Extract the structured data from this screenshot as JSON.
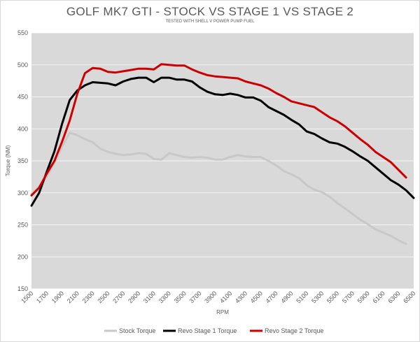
{
  "chart_data": {
    "type": "line",
    "title": "GOLF MK7 GTI - STOCK VS STAGE 1 VS STAGE 2",
    "subtitle": "TESTED WITH SHELL V POWER PUMP FUEL",
    "xlabel": "RPM",
    "ylabel": "Torque (NM)",
    "ylim": [
      150,
      550
    ],
    "yticks": [
      150,
      200,
      250,
      300,
      350,
      400,
      450,
      500,
      550
    ],
    "xlim": [
      1500,
      6500
    ],
    "xticks": [
      1500,
      1700,
      1900,
      2100,
      2300,
      2500,
      2700,
      2900,
      3100,
      3300,
      3500,
      3700,
      3900,
      4100,
      4300,
      4500,
      4700,
      4900,
      5100,
      5300,
      5500,
      5700,
      5900,
      6100,
      6300,
      6500
    ],
    "grid": "horizontal",
    "legend_position": "bottom",
    "series": [
      {
        "name": "Stock Torque",
        "color": "#c8c8c8",
        "points": [
          [
            1500,
            298
          ],
          [
            1600,
            310
          ],
          [
            1700,
            325
          ],
          [
            1800,
            347
          ],
          [
            1900,
            372
          ],
          [
            2000,
            394
          ],
          [
            2100,
            390
          ],
          [
            2200,
            384
          ],
          [
            2300,
            379
          ],
          [
            2400,
            369
          ],
          [
            2500,
            364
          ],
          [
            2600,
            361
          ],
          [
            2700,
            359
          ],
          [
            2800,
            360
          ],
          [
            2900,
            362
          ],
          [
            3000,
            361
          ],
          [
            3100,
            353
          ],
          [
            3200,
            352
          ],
          [
            3300,
            362
          ],
          [
            3400,
            359
          ],
          [
            3500,
            356
          ],
          [
            3600,
            355
          ],
          [
            3700,
            356
          ],
          [
            3800,
            355
          ],
          [
            3900,
            352
          ],
          [
            4000,
            352
          ],
          [
            4100,
            356
          ],
          [
            4200,
            359
          ],
          [
            4300,
            357
          ],
          [
            4400,
            356
          ],
          [
            4500,
            356
          ],
          [
            4600,
            350
          ],
          [
            4700,
            343
          ],
          [
            4800,
            334
          ],
          [
            4900,
            329
          ],
          [
            5000,
            323
          ],
          [
            5100,
            312
          ],
          [
            5200,
            305
          ],
          [
            5300,
            301
          ],
          [
            5400,
            294
          ],
          [
            5500,
            284
          ],
          [
            5600,
            276
          ],
          [
            5700,
            267
          ],
          [
            5800,
            258
          ],
          [
            5900,
            251
          ],
          [
            6000,
            243
          ],
          [
            6100,
            238
          ],
          [
            6200,
            233
          ],
          [
            6300,
            226
          ],
          [
            6400,
            220
          ]
        ]
      },
      {
        "name": "Revo Stage 1 Torque",
        "color": "#000000",
        "points": [
          [
            1500,
            280
          ],
          [
            1600,
            300
          ],
          [
            1700,
            333
          ],
          [
            1800,
            365
          ],
          [
            1900,
            408
          ],
          [
            2000,
            445
          ],
          [
            2100,
            460
          ],
          [
            2200,
            468
          ],
          [
            2300,
            473
          ],
          [
            2400,
            472
          ],
          [
            2500,
            471
          ],
          [
            2600,
            468
          ],
          [
            2700,
            474
          ],
          [
            2800,
            478
          ],
          [
            2900,
            480
          ],
          [
            3000,
            480
          ],
          [
            3100,
            473
          ],
          [
            3200,
            480
          ],
          [
            3300,
            480
          ],
          [
            3400,
            477
          ],
          [
            3500,
            477
          ],
          [
            3600,
            474
          ],
          [
            3700,
            465
          ],
          [
            3800,
            458
          ],
          [
            3900,
            454
          ],
          [
            4000,
            453
          ],
          [
            4100,
            455
          ],
          [
            4200,
            453
          ],
          [
            4300,
            449
          ],
          [
            4400,
            449
          ],
          [
            4500,
            444
          ],
          [
            4600,
            434
          ],
          [
            4700,
            428
          ],
          [
            4800,
            422
          ],
          [
            4900,
            414
          ],
          [
            5000,
            407
          ],
          [
            5100,
            396
          ],
          [
            5200,
            392
          ],
          [
            5300,
            385
          ],
          [
            5400,
            379
          ],
          [
            5500,
            377
          ],
          [
            5600,
            372
          ],
          [
            5700,
            365
          ],
          [
            5800,
            357
          ],
          [
            5900,
            350
          ],
          [
            6000,
            340
          ],
          [
            6100,
            330
          ],
          [
            6200,
            320
          ],
          [
            6300,
            313
          ],
          [
            6400,
            304
          ],
          [
            6500,
            292
          ]
        ]
      },
      {
        "name": "Revo Stage 2 Torque",
        "color": "#cc0000",
        "points": [
          [
            1500,
            296
          ],
          [
            1600,
            308
          ],
          [
            1700,
            330
          ],
          [
            1800,
            350
          ],
          [
            1900,
            380
          ],
          [
            2000,
            413
          ],
          [
            2100,
            455
          ],
          [
            2200,
            487
          ],
          [
            2300,
            495
          ],
          [
            2400,
            494
          ],
          [
            2500,
            489
          ],
          [
            2600,
            488
          ],
          [
            2700,
            490
          ],
          [
            2800,
            492
          ],
          [
            2900,
            494
          ],
          [
            3000,
            494
          ],
          [
            3100,
            493
          ],
          [
            3200,
            501
          ],
          [
            3300,
            500
          ],
          [
            3400,
            499
          ],
          [
            3500,
            499
          ],
          [
            3600,
            493
          ],
          [
            3700,
            488
          ],
          [
            3800,
            484
          ],
          [
            3900,
            482
          ],
          [
            4000,
            481
          ],
          [
            4100,
            480
          ],
          [
            4200,
            479
          ],
          [
            4300,
            474
          ],
          [
            4400,
            471
          ],
          [
            4500,
            468
          ],
          [
            4600,
            463
          ],
          [
            4700,
            456
          ],
          [
            4800,
            450
          ],
          [
            4900,
            443
          ],
          [
            5000,
            440
          ],
          [
            5100,
            437
          ],
          [
            5200,
            434
          ],
          [
            5300,
            426
          ],
          [
            5400,
            418
          ],
          [
            5500,
            412
          ],
          [
            5600,
            404
          ],
          [
            5700,
            394
          ],
          [
            5800,
            384
          ],
          [
            5900,
            375
          ],
          [
            6000,
            364
          ],
          [
            6100,
            356
          ],
          [
            6200,
            348
          ],
          [
            6300,
            336
          ],
          [
            6400,
            324
          ]
        ]
      }
    ]
  }
}
